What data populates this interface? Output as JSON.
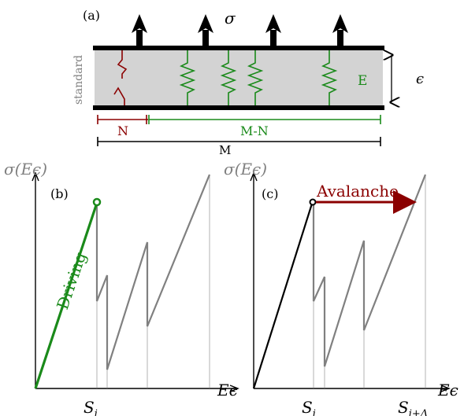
{
  "panel_a": {
    "label": "(a)",
    "sigma": "σ",
    "side_label": "standard",
    "spring_label": "E",
    "strain_label": "ϵ",
    "n_label": "N",
    "mn_label": "M-N",
    "m_label": "M"
  },
  "panel_b": {
    "label": "(b)",
    "y_axis": "σ(Eϵ)",
    "x_axis": "Eϵ",
    "tick": "S",
    "tick_sub": "i",
    "driving": "Driving"
  },
  "panel_c": {
    "label": "(c)",
    "y_axis": "σ(Eϵ)",
    "x_axis": "Eϵ",
    "tick1": "S",
    "tick1_sub": "i",
    "tick2": "S",
    "tick2_sub": "i+Δ",
    "avalanche": "Avalanche"
  },
  "colors": {
    "green": "#1a8a1a",
    "dark_red": "#8b0000",
    "gray": "#808080",
    "panel_fill": "#d3d3d3"
  }
}
